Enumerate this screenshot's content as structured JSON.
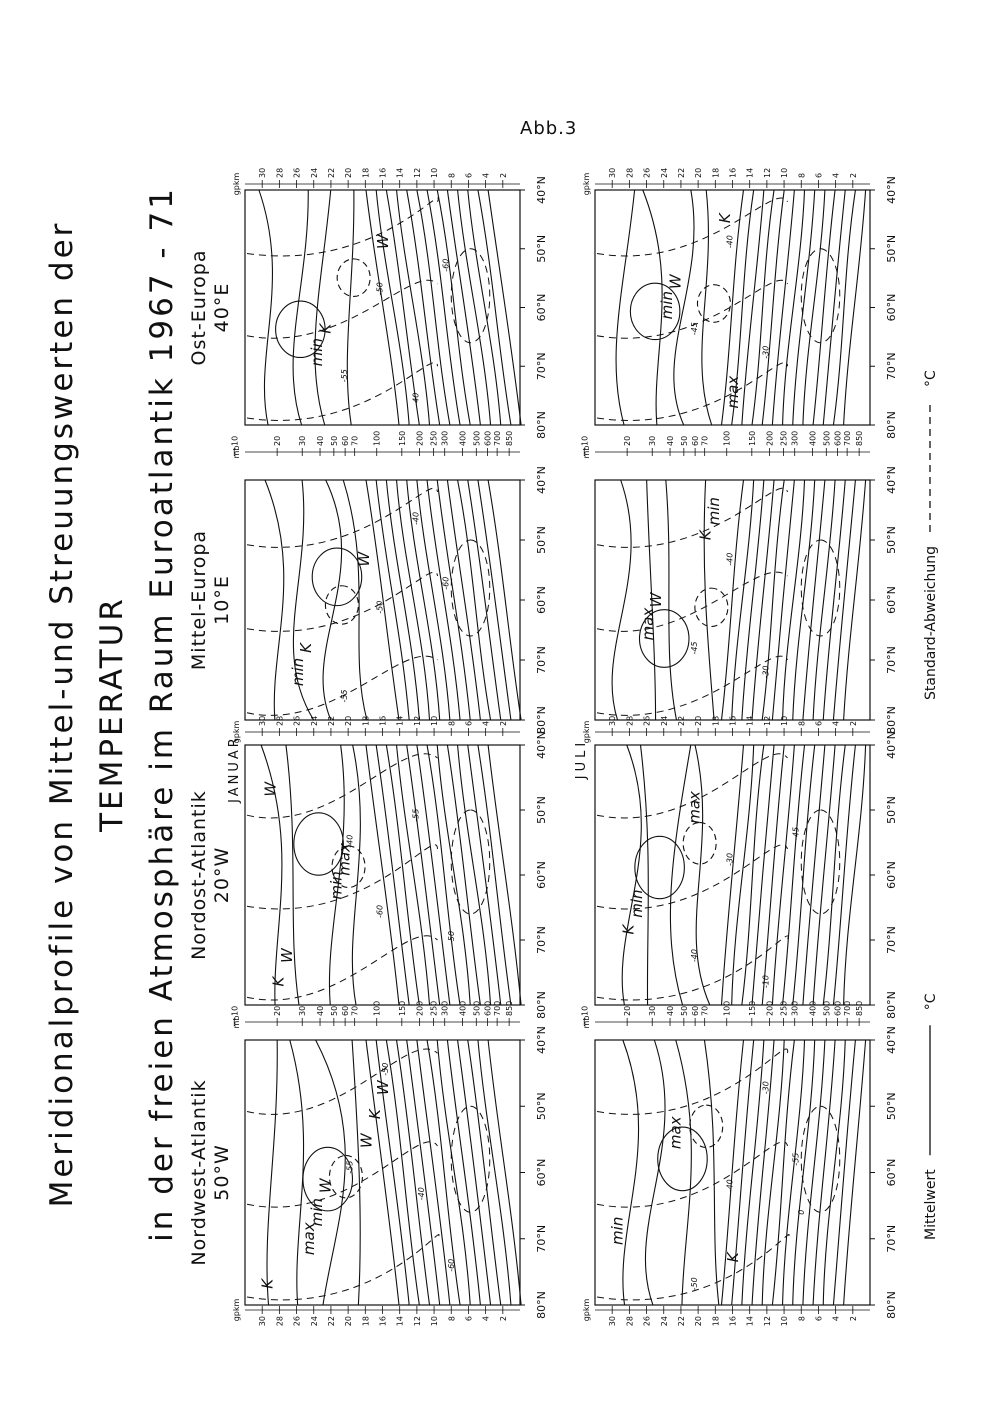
{
  "figure_label": "Abb.3",
  "title": {
    "line1": "Meridionalprofile von Mittel-und Streuungswerten der",
    "line2": "TEMPERATUR",
    "line3": "in der freien Atmosphäre im Raum Euroatlantik 1967 - 71"
  },
  "seasons": [
    "JANUAR",
    "JULI"
  ],
  "panels": [
    {
      "name": "Nordwest-Atlantik",
      "longitude": "50°W",
      "labels": [
        [
          "K",
          "W",
          "W",
          "min",
          "K",
          "max",
          "W",
          "-60",
          "-55",
          "-50",
          "-40"
        ],
        [
          "min",
          "max",
          "K",
          "-55",
          "-50",
          "-40",
          "-30",
          "0"
        ]
      ]
    },
    {
      "name": "Nordost-Atlantik",
      "longitude": "20°W",
      "labels": [
        [
          "W",
          "max",
          "K",
          "min",
          "W",
          "-60",
          "-55",
          "-50",
          "-40"
        ],
        [
          "min",
          "max",
          "K",
          "-45",
          "-40",
          "-30",
          "-10"
        ]
      ]
    },
    {
      "name": "Mittel-Europa",
      "longitude": "10°E",
      "labels": [
        [
          "K",
          "W",
          "min",
          "-60",
          "-55",
          "-50",
          "-40"
        ],
        [
          "W",
          "min",
          "max",
          "K",
          "-45",
          "-40",
          "-30"
        ]
      ]
    },
    {
      "name": "Ost-Europa",
      "longitude": "40°E",
      "labels": [
        [
          "K",
          "W",
          "min",
          "-60",
          "-55",
          "-50",
          "-40"
        ],
        [
          "W",
          "max",
          "min",
          "K",
          "-45",
          "-40",
          "-30"
        ]
      ]
    }
  ],
  "latitudes": [
    "80°N",
    "70°N",
    "60°N",
    "50°N",
    "40°N"
  ],
  "height_axis": {
    "unit": "gpkm",
    "ticks": [
      "30",
      "28",
      "26",
      "24",
      "22",
      "20",
      "18",
      "16",
      "14",
      "12",
      "10",
      "8",
      "6",
      "4",
      "2"
    ]
  },
  "pressure_axis": {
    "unit": "mb",
    "ticks": [
      "10",
      "20",
      "30",
      "40",
      "50",
      "60",
      "70",
      "100",
      "150",
      "200",
      "250",
      "300",
      "400",
      "500",
      "600",
      "700",
      "850"
    ]
  },
  "legend": [
    {
      "label": "Mittelwert",
      "unit": "°C"
    },
    {
      "label": "Standard-Abweichung",
      "unit": "°C"
    }
  ]
}
